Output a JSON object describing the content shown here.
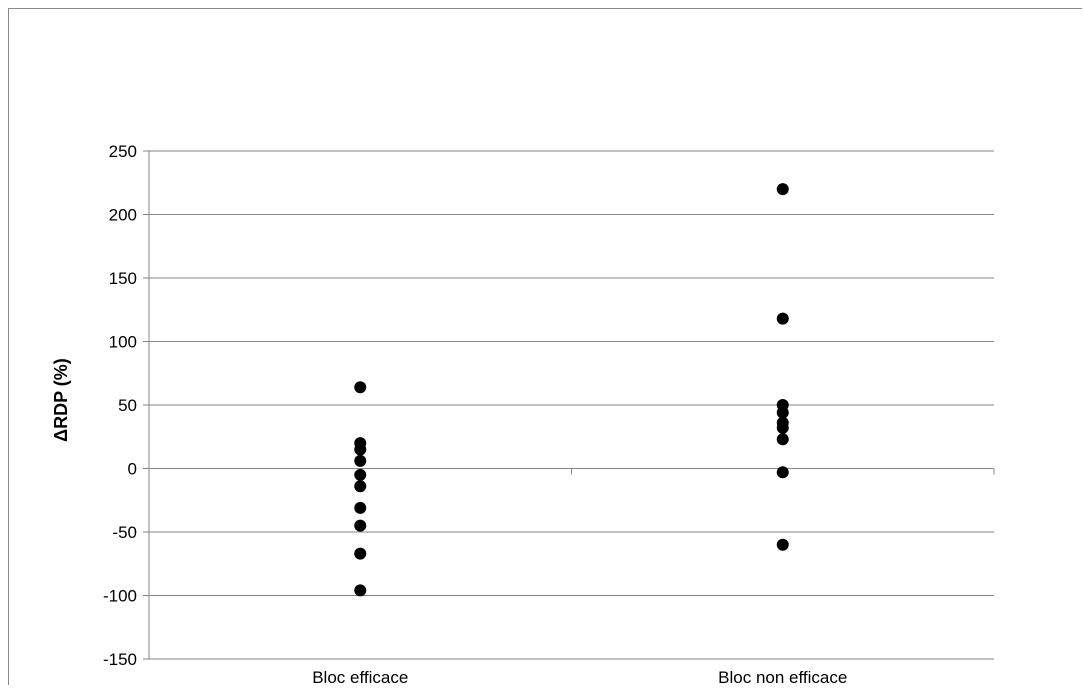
{
  "chart_data": {
    "type": "scatter",
    "categories": [
      "Bloc efficace",
      "Bloc non efficace"
    ],
    "ylabel": "ΔRDP (%)",
    "xlabel": "",
    "title": "",
    "ylim": [
      -150,
      250
    ],
    "yticks": [
      250,
      200,
      150,
      100,
      50,
      0,
      -50,
      -100,
      -150
    ],
    "grid": true,
    "legend": "none",
    "series": [
      {
        "category": "Bloc efficace",
        "values": [
          64,
          20,
          15,
          6,
          -5,
          -14,
          -31,
          -45,
          -67,
          -96
        ]
      },
      {
        "category": "Bloc non efficace",
        "values": [
          220,
          118,
          50,
          44,
          36,
          32,
          23,
          -3,
          -60
        ]
      }
    ],
    "colors": {
      "marker": "#000000",
      "grid": "#868686",
      "axis": "#868686"
    }
  }
}
